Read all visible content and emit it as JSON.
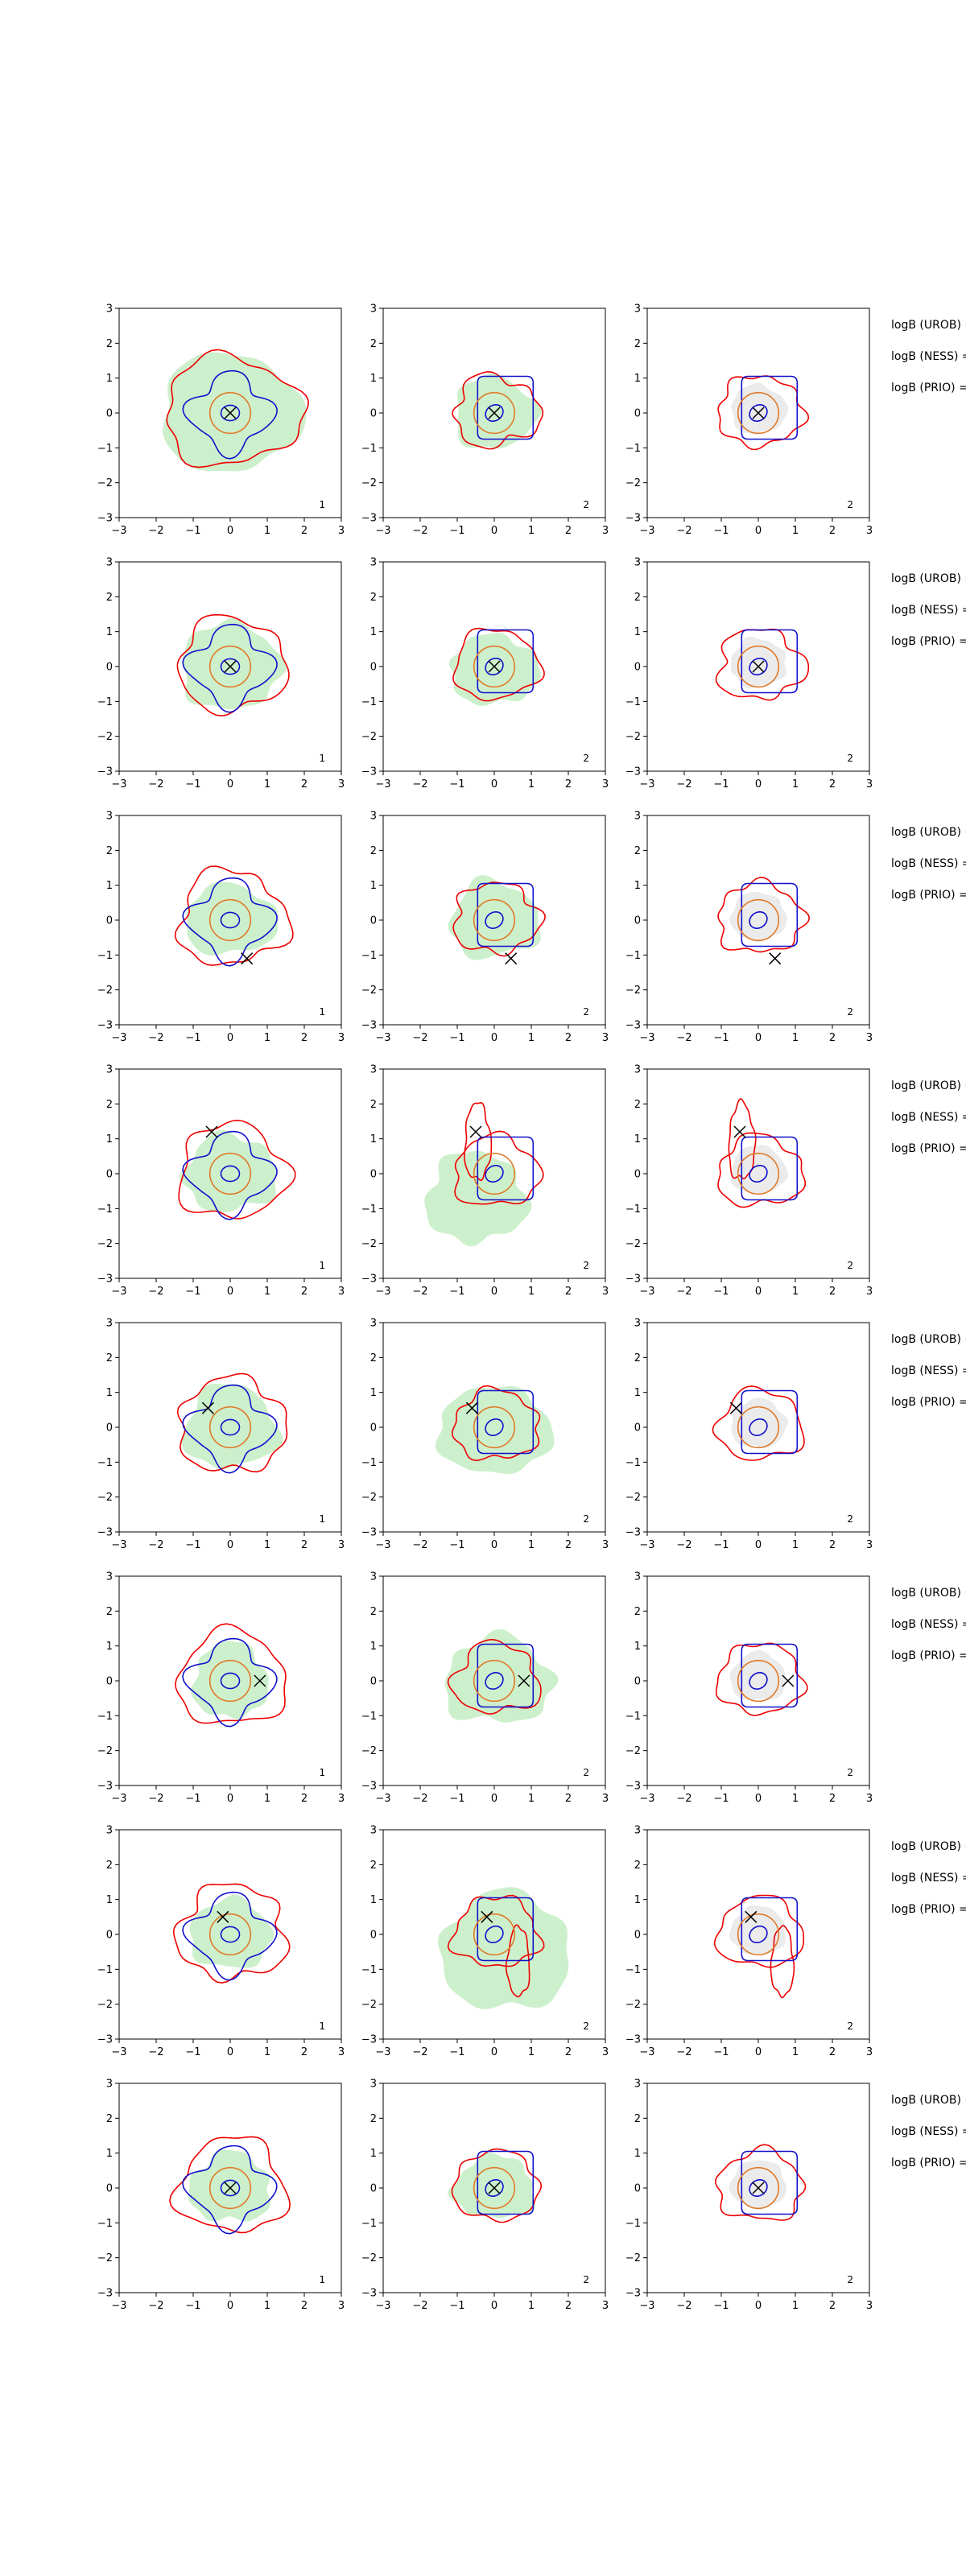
{
  "chart_data": {
    "type": "contour",
    "xlim": [
      -3,
      3
    ],
    "ylim": [
      -3,
      3
    ],
    "x_ticks": [
      "−3",
      "−2",
      "−1",
      "0",
      "1",
      "2",
      "3"
    ],
    "y_ticks": [
      "−3",
      "−2",
      "−1",
      "0",
      "1",
      "2",
      "3"
    ],
    "grid": false,
    "legend": "none",
    "colors": {
      "red_contour": "#ee0000",
      "blue_contour": "#1111cc",
      "orange_contour": "#e07a2a",
      "green_fill": "#cdf0cc",
      "cross": "#000000",
      "axes": "#000000"
    },
    "column_corner_labels": [
      "1",
      "2",
      "2"
    ],
    "side_labels": [
      "logB (UROB) =",
      "logB (NESS) =",
      "logB (PRIO) ="
    ],
    "rows": [
      {
        "marker": [
          0.0,
          0.0
        ]
      },
      {
        "marker": [
          0.0,
          0.0
        ]
      },
      {
        "marker": [
          0.45,
          -1.1
        ]
      },
      {
        "marker": [
          -0.5,
          1.2
        ]
      },
      {
        "marker": [
          -0.6,
          0.55
        ]
      },
      {
        "marker": [
          0.8,
          0.0
        ]
      },
      {
        "marker": [
          -0.2,
          0.5
        ]
      },
      {
        "marker": [
          0.0,
          0.0
        ]
      }
    ]
  }
}
